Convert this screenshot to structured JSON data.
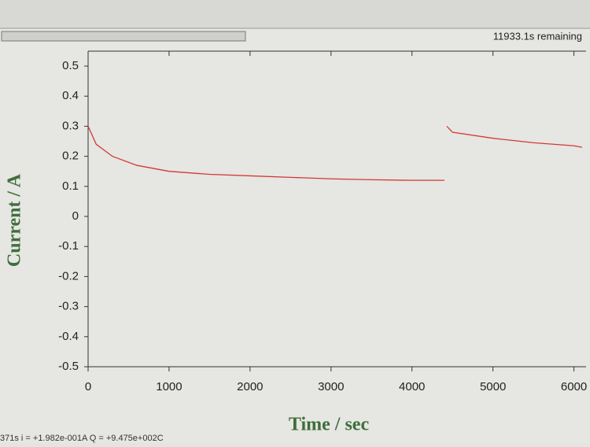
{
  "status": {
    "remaining": "11933.1s remaining",
    "readout": "371s  i = +1.982e-001A  Q = +9.475e+002C"
  },
  "chart_data": {
    "type": "line",
    "xlabel": "Time / sec",
    "ylabel": "Current / A",
    "x": [
      0,
      100,
      300,
      600,
      1000,
      1500,
      2000,
      2500,
      3000,
      3500,
      4000,
      4400,
      4420,
      4430,
      4500,
      5000,
      5500,
      6000,
      6100
    ],
    "series": [
      {
        "color": "#d23a32",
        "values": [
          0.3,
          0.24,
          0.2,
          0.17,
          0.15,
          0.14,
          0.135,
          0.13,
          0.125,
          0.122,
          0.12,
          0.12,
          null,
          0.3,
          0.28,
          0.26,
          0.245,
          0.235,
          0.23
        ]
      }
    ],
    "xlim": [
      0,
      6150
    ],
    "ylim": [
      -0.5,
      0.5
    ],
    "xticks": [
      0,
      1000,
      2000,
      3000,
      4000,
      5000,
      6000
    ],
    "yticks": [
      0.5,
      0.4,
      0.3,
      0.2,
      0.1,
      0,
      -0.1,
      -0.2,
      -0.3,
      -0.4,
      -0.5
    ]
  }
}
